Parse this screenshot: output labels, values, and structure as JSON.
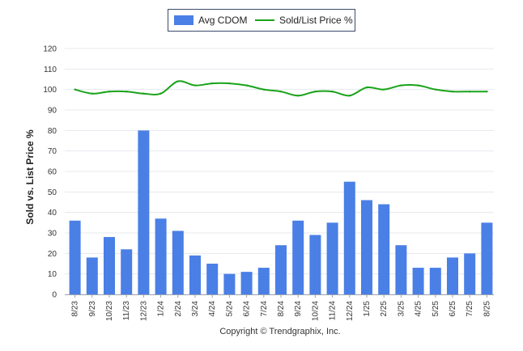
{
  "chart_data": {
    "type": "bar",
    "categories": [
      "8/23",
      "9/23",
      "10/23",
      "11/23",
      "12/23",
      "1/24",
      "2/24",
      "3/24",
      "4/24",
      "5/24",
      "6/24",
      "7/24",
      "8/24",
      "9/24",
      "10/24",
      "11/24",
      "12/24",
      "1/25",
      "2/25",
      "3/25",
      "4/25",
      "5/25",
      "6/25",
      "7/25",
      "8/25"
    ],
    "series": [
      {
        "name": "Avg CDOM",
        "kind": "bar",
        "color": "#4a7fe6",
        "values": [
          36,
          18,
          28,
          22,
          80,
          37,
          31,
          19,
          15,
          10,
          11,
          13,
          24,
          36,
          29,
          35,
          55,
          46,
          44,
          24,
          13,
          13,
          18,
          20,
          35
        ]
      },
      {
        "name": "Sold/List Price %",
        "kind": "line",
        "color": "#1aa31a",
        "values": [
          100,
          98,
          99,
          99,
          98,
          98,
          104,
          102,
          103,
          103,
          102,
          100,
          99,
          97,
          99,
          99,
          97,
          101,
          100,
          102,
          102,
          100,
          99,
          99,
          99
        ]
      }
    ],
    "ylabel": "Sold vs. List Price %",
    "ylim": [
      0,
      120
    ],
    "yticks": [
      0,
      10,
      20,
      30,
      40,
      50,
      60,
      70,
      80,
      90,
      100,
      110,
      120
    ],
    "grid": true,
    "legend_position": "top-center"
  },
  "copyright": "Copyright © Trendgraphix, Inc."
}
